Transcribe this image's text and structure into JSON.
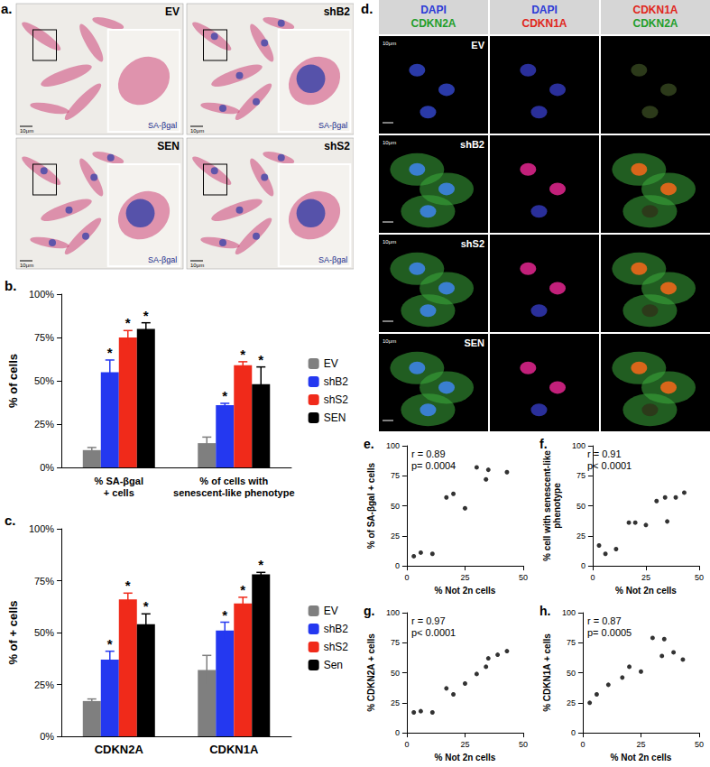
{
  "panels": {
    "a": {
      "label": "a.",
      "images": [
        {
          "name": "EV",
          "inset": "SA-βgal",
          "scale": "10μm"
        },
        {
          "name": "shB2",
          "inset": "SA-βgal",
          "scale": "10μm"
        },
        {
          "name": "SEN",
          "inset": "SA-βgal",
          "scale": "10μm"
        },
        {
          "name": "shS2",
          "inset": "SA-βgal",
          "scale": "10μm"
        }
      ]
    },
    "d": {
      "label": "d.",
      "columns": [
        [
          {
            "text": "DAPI",
            "color": "#2b3bd6"
          },
          {
            "text": "CDKN2A",
            "color": "#1f9e2a"
          }
        ],
        [
          {
            "text": "DAPI",
            "color": "#2b3bd6"
          },
          {
            "text": "CDKN1A",
            "color": "#e0261b"
          }
        ],
        [
          {
            "text": "CDKN1A",
            "color": "#e0261b"
          },
          {
            "text": "CDKN2A",
            "color": "#1f9e2a"
          }
        ]
      ],
      "rows": [
        "EV",
        "shB2",
        "shS2",
        "SEN"
      ],
      "scale": "10μm"
    }
  },
  "chart_data": [
    {
      "type": "bar",
      "title": "b.",
      "ylabel": "% of cells",
      "categories": [
        "% SA-βgal\n+ cells",
        "% of cells with\nsenescent-like phenotype"
      ],
      "series": [
        {
          "name": "EV",
          "color": "#7f7f7f",
          "values": [
            10,
            14
          ],
          "errors": [
            1.5,
            3.5
          ]
        },
        {
          "name": "shB2",
          "color": "#2438f0",
          "values": [
            55,
            36
          ],
          "errors": [
            7,
            1
          ],
          "significance": "*"
        },
        {
          "name": "shS2",
          "color": "#f02a1a",
          "values": [
            75,
            59
          ],
          "errors": [
            4,
            2
          ],
          "significance": "*"
        },
        {
          "name": "SEN",
          "color": "#000000",
          "values": [
            80,
            48
          ],
          "errors": [
            3.5,
            10
          ],
          "significance": "*"
        }
      ],
      "ylim": [
        0,
        100
      ],
      "yticks": [
        {
          "value": 0,
          "label": "0%"
        },
        {
          "value": 25,
          "label": "25%"
        },
        {
          "value": 50,
          "label": "50%"
        },
        {
          "value": 75,
          "label": "75%"
        },
        {
          "value": 100,
          "label": "100%"
        }
      ],
      "grid": false,
      "legend": "right"
    },
    {
      "type": "bar",
      "title": "c.",
      "ylabel": "% of + cells",
      "categories": [
        "CDKN2A",
        "CDKN1A"
      ],
      "series": [
        {
          "name": "EV",
          "color": "#7f7f7f",
          "values": [
            17,
            32
          ],
          "errors": [
            1,
            7
          ]
        },
        {
          "name": "shB2",
          "color": "#2438f0",
          "values": [
            37,
            51
          ],
          "errors": [
            4,
            4
          ],
          "significance": "*"
        },
        {
          "name": "shS2",
          "color": "#f02a1a",
          "values": [
            66,
            64
          ],
          "errors": [
            3,
            3
          ],
          "significance": "*"
        },
        {
          "name": "Sen",
          "color": "#000000",
          "values": [
            54,
            78
          ],
          "errors": [
            5,
            1
          ],
          "significance": "*"
        }
      ],
      "ylim": [
        0,
        100
      ],
      "yticks": [
        {
          "value": 0,
          "label": "0%"
        },
        {
          "value": 25,
          "label": "25%"
        },
        {
          "value": 50,
          "label": "50%"
        },
        {
          "value": 75,
          "label": "75%"
        },
        {
          "value": 100,
          "label": "100%"
        }
      ],
      "grid": false,
      "legend": "right"
    },
    {
      "type": "scatter",
      "title": "e.",
      "xlabel": "% Not 2n cells",
      "ylabel": "% of SA-βgal + cells",
      "annotations": [
        "r = 0.89",
        "p= 0.0004"
      ],
      "x": [
        3,
        6,
        11,
        17,
        20,
        25,
        30,
        34,
        35,
        43
      ],
      "values": [
        8,
        11,
        10,
        57,
        60,
        48,
        82,
        72,
        80,
        78
      ],
      "color": "#000000",
      "xlim": [
        0,
        50
      ],
      "xticks": [
        0,
        25,
        50
      ],
      "ylim": [
        0,
        100
      ],
      "yticks": [
        0,
        25,
        50,
        75,
        100
      ],
      "grid": false
    },
    {
      "type": "scatter",
      "title": "f.",
      "xlabel": "% Not 2n cells",
      "ylabel": "% cell with senescent-like\nphenotype",
      "annotations": [
        "r = 0.91",
        "p< 0.0001"
      ],
      "x": [
        3,
        6,
        11,
        17,
        20,
        25,
        30,
        34,
        35,
        39,
        43
      ],
      "values": [
        17,
        10,
        14,
        36,
        36,
        34,
        54,
        57,
        37,
        57,
        61
      ],
      "color": "#000000",
      "xlim": [
        0,
        50
      ],
      "xticks": [
        0,
        25,
        50
      ],
      "ylim": [
        0,
        100
      ],
      "yticks": [
        0,
        25,
        50,
        75,
        100
      ],
      "grid": false
    },
    {
      "type": "scatter",
      "title": "g.",
      "xlabel": "% Not 2n cells",
      "ylabel": "% CDKN2A + cells",
      "annotations": [
        "r = 0.97",
        "p< 0.0001"
      ],
      "x": [
        3,
        6,
        11,
        17,
        20,
        25,
        30,
        34,
        35,
        39,
        43
      ],
      "values": [
        17,
        18,
        17,
        37,
        32,
        41,
        49,
        55,
        62,
        65,
        68
      ],
      "color": "#000000",
      "xlim": [
        0,
        50
      ],
      "xticks": [
        0,
        25,
        50
      ],
      "ylim": [
        0,
        100
      ],
      "yticks": [
        0,
        25,
        50,
        75,
        100
      ],
      "grid": false
    },
    {
      "type": "scatter",
      "title": "h.",
      "xlabel": "% Not 2n cells",
      "ylabel": "% CDKN1A + cells",
      "annotations": [
        "r = 0.87",
        "p= 0.0005"
      ],
      "x": [
        3,
        6,
        11,
        17,
        20,
        25,
        30,
        34,
        35,
        39,
        43
      ],
      "values": [
        25,
        32,
        40,
        46,
        55,
        51,
        79,
        64,
        78,
        67,
        61
      ],
      "color": "#000000",
      "xlim": [
        0,
        50
      ],
      "xticks": [
        0,
        25,
        50
      ],
      "ylim": [
        0,
        100
      ],
      "yticks": [
        0,
        25,
        50,
        75,
        100
      ],
      "grid": false
    }
  ]
}
